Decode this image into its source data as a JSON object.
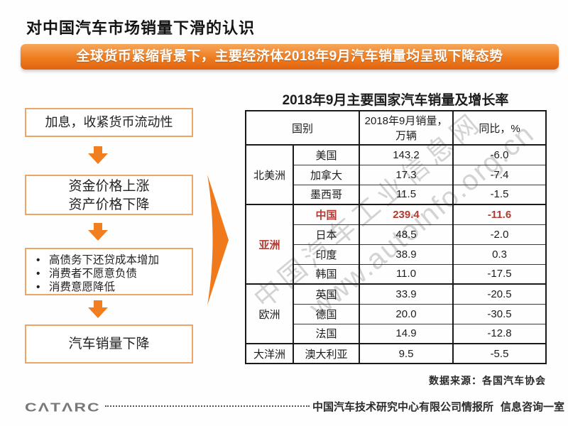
{
  "page": {
    "title": "对中国汽车市场销量下滑的认识",
    "banner": "全球货币紧缩背景下，主要经济体2018年9月汽车销量均呈现下降态势"
  },
  "flowchart": {
    "box1": "加息，收紧货币流动性",
    "box2_line1": "资金价格上涨",
    "box2_line2": "资产价格下降",
    "bullets": [
      "高债务下还贷成本增加",
      "消费者不愿意负债",
      "消费意愿降低"
    ],
    "box4": "汽车销量下降"
  },
  "table": {
    "title": "2018年9月主要国家汽车销量及增长率",
    "headers": [
      "国别",
      "2018年9月销量，万辆",
      "同比，%"
    ],
    "groups": [
      {
        "region": "北美洲",
        "rows": [
          {
            "country": "美国",
            "sales": "143.2",
            "yoy": "-6.0",
            "highlight": false
          },
          {
            "country": "加拿大",
            "sales": "17.3",
            "yoy": "-7.4",
            "highlight": false
          },
          {
            "country": "墨西哥",
            "sales": "11.5",
            "yoy": "-1.5",
            "highlight": false
          }
        ]
      },
      {
        "region": "亚洲",
        "rows": [
          {
            "country": "中国",
            "sales": "239.4",
            "yoy": "-11.6",
            "highlight": true
          },
          {
            "country": "日本",
            "sales": "48.5",
            "yoy": "-2.0",
            "highlight": false
          },
          {
            "country": "印度",
            "sales": "38.9",
            "yoy": "0.3",
            "highlight": false
          },
          {
            "country": "韩国",
            "sales": "11.0",
            "yoy": "-17.5",
            "highlight": false
          }
        ]
      },
      {
        "region": "欧洲",
        "rows": [
          {
            "country": "英国",
            "sales": "33.9",
            "yoy": "-20.5",
            "highlight": false
          },
          {
            "country": "德国",
            "sales": "20.0",
            "yoy": "-30.5",
            "highlight": false
          },
          {
            "country": "法国",
            "sales": "14.9",
            "yoy": "-12.8",
            "highlight": false
          }
        ]
      },
      {
        "region": "大洋洲",
        "rows": [
          {
            "country": "澳大利亚",
            "sales": "9.5",
            "yoy": "-5.5",
            "highlight": false
          }
        ]
      }
    ],
    "source": "数据来源：各国汽车协会",
    "highlight_color": "#b43a32"
  },
  "watermark": {
    "line1": "中国汽车工业信息网",
    "line2": "www.autoinfo.org.cn"
  },
  "footer": {
    "logo": "CΛTΛRC",
    "org": "中国汽车技术研究中心有限公司情报所",
    "dept": "信息咨询一室"
  },
  "colors": {
    "accent_orange": "#ee7c1f",
    "box_border": "#eca566",
    "table_border": "#1a1a1a",
    "highlight_red": "#b43a32"
  }
}
